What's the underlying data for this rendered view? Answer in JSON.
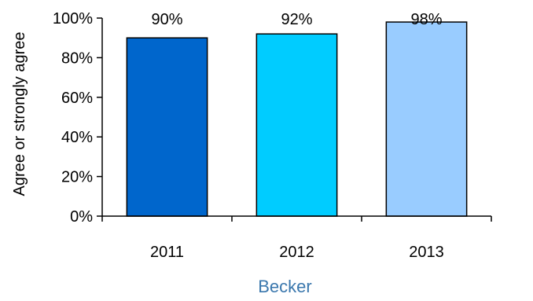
{
  "chart_data": {
    "type": "bar",
    "title": "",
    "xlabel": "Becker",
    "ylabel": "Agree or strongly agree",
    "categories": [
      "2011",
      "2012",
      "2013"
    ],
    "values": [
      90,
      92,
      98
    ],
    "data_labels": [
      "90%",
      "92%",
      "98%"
    ],
    "yticks": [
      0,
      20,
      40,
      60,
      80,
      100
    ],
    "ytick_labels": [
      "0%",
      "20%",
      "40%",
      "60%",
      "80%",
      "100%"
    ],
    "ylim": [
      0,
      100
    ],
    "grid": false,
    "legend": "none",
    "bar_colors": [
      "#0066cc",
      "#00ccff",
      "#99ccff"
    ],
    "xlabel_color": "#3a77ad"
  }
}
